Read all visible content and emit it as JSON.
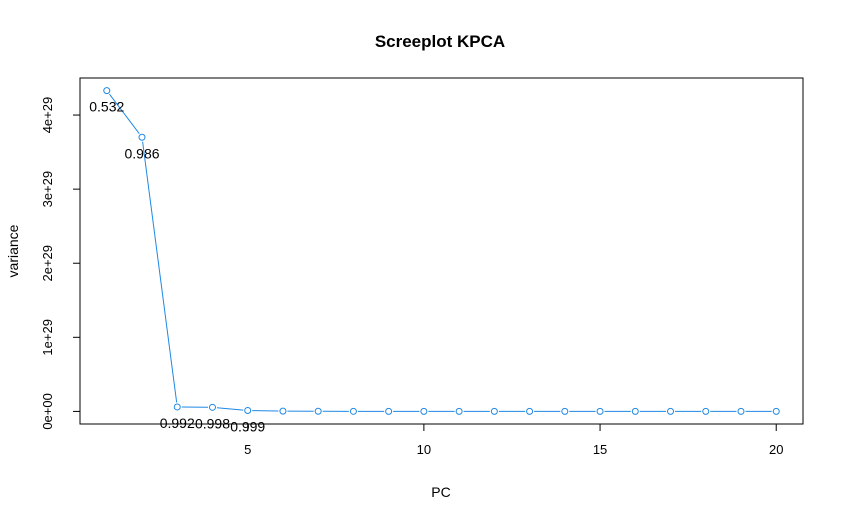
{
  "chart_data": {
    "type": "line",
    "title": "Screeplot KPCA",
    "xlabel": "PC",
    "ylabel": "variance",
    "x": [
      1,
      2,
      3,
      4,
      5,
      6,
      7,
      8,
      9,
      10,
      11,
      12,
      13,
      14,
      15,
      16,
      17,
      18,
      19,
      20
    ],
    "series": [
      {
        "values": [
          4.33e+29,
          3.7e+29,
          6e+27,
          5.5e+27,
          1.2e+27,
          4e+26,
          2e+26,
          1e+26,
          6e+25,
          4e+25,
          3e+25,
          2e+25,
          1e+25,
          1e+25,
          1e+25,
          1e+25,
          1e+25,
          1e+25,
          1e+25,
          1e+25
        ],
        "point_labels": [
          "0.532",
          "0.986",
          "0.992",
          "0.998",
          "0.999",
          "",
          "",
          "",
          "",
          "",
          "",
          "",
          "",
          "",
          "",
          "",
          "",
          "",
          "",
          ""
        ]
      }
    ],
    "xticks": [
      5,
      10,
      15,
      20
    ],
    "xtick_labels": [
      "5",
      "10",
      "15",
      "20"
    ],
    "yticks": [
      0,
      1e+29,
      2e+29,
      3e+29,
      4e+29
    ],
    "ytick_labels": [
      "0e+00",
      "1e+29",
      "2e+29",
      "3e+29",
      "4e+29"
    ],
    "xlim": [
      0.24,
      20.76
    ],
    "ylim": [
      -1.7e+28,
      4.5e+29
    ],
    "grid": false,
    "legend": "none",
    "colors": {
      "line": "#1E88E5",
      "points": "#1E88E5",
      "axis": "#000000",
      "text": "#000000"
    }
  }
}
